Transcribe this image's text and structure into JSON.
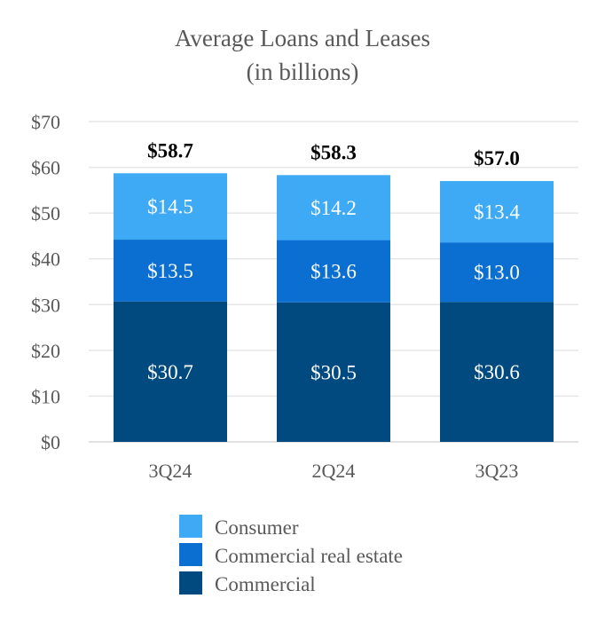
{
  "chart_data": {
    "type": "bar",
    "stacked": true,
    "title": [
      "Average Loans and Leases",
      "(in billions)"
    ],
    "categories": [
      "3Q24",
      "2Q24",
      "3Q23"
    ],
    "series": [
      {
        "name": "Commercial",
        "values": [
          30.7,
          30.5,
          30.6
        ],
        "labels": [
          "$30.7",
          "$30.5",
          "$30.6"
        ],
        "color": "#004a80"
      },
      {
        "name": "Commercial real estate",
        "values": [
          13.5,
          13.6,
          13.0
        ],
        "labels": [
          "$13.5",
          "$13.6",
          "$13.0"
        ],
        "color": "#0a6fd1"
      },
      {
        "name": "Consumer",
        "values": [
          14.5,
          14.2,
          13.4
        ],
        "labels": [
          "$14.5",
          "$14.2",
          "$13.4"
        ],
        "color": "#3eaaf5"
      }
    ],
    "totals": [
      "$58.7",
      "$58.3",
      "$57.0"
    ],
    "totals_values": [
      58.7,
      58.3,
      57.0
    ],
    "ylim": [
      0,
      70
    ],
    "yticks": [
      0,
      10,
      20,
      30,
      40,
      50,
      60,
      70
    ],
    "ytick_labels": [
      "$0",
      "$10",
      "$20",
      "$30",
      "$40",
      "$50",
      "$60",
      "$70"
    ],
    "grid": true,
    "legend": {
      "position": "bottom",
      "entries": [
        "Consumer",
        "Commercial real estate",
        "Commercial"
      ]
    }
  }
}
